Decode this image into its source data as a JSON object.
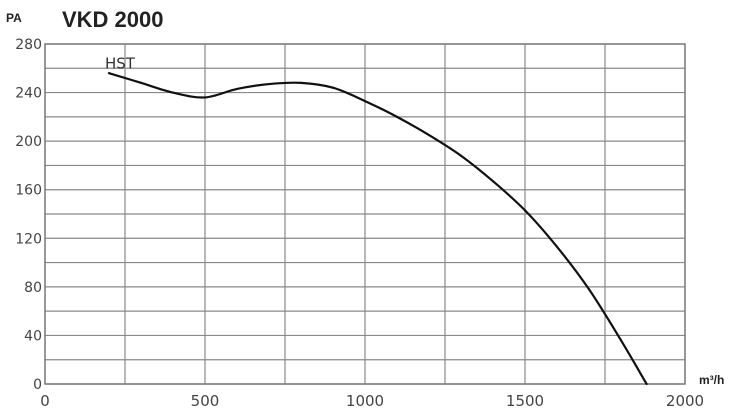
{
  "header": {
    "y_unit": "PA",
    "title": "VKD 2000",
    "x_unit": "m³/h"
  },
  "chart_data": {
    "type": "line",
    "title": "VKD 2000",
    "xlabel": "m³/h",
    "ylabel": "PA",
    "xlim": [
      0,
      2000
    ],
    "ylim": [
      0,
      280
    ],
    "x_ticks": [
      "0",
      "500",
      "1000",
      "1500",
      "2000"
    ],
    "y_ticks": [
      "280",
      "240",
      "200",
      "160",
      "120",
      "80",
      "40",
      "0"
    ],
    "grid": true,
    "series": [
      {
        "name": "HST",
        "x": [
          200,
          300,
          400,
          500,
          600,
          700,
          800,
          900,
          1000,
          1100,
          1200,
          1300,
          1400,
          1500,
          1600,
          1700,
          1800,
          1880
        ],
        "y": [
          256,
          248,
          240,
          236,
          243,
          247,
          248,
          244,
          233,
          220,
          205,
          188,
          167,
          143,
          113,
          78,
          36,
          0
        ]
      }
    ]
  }
}
